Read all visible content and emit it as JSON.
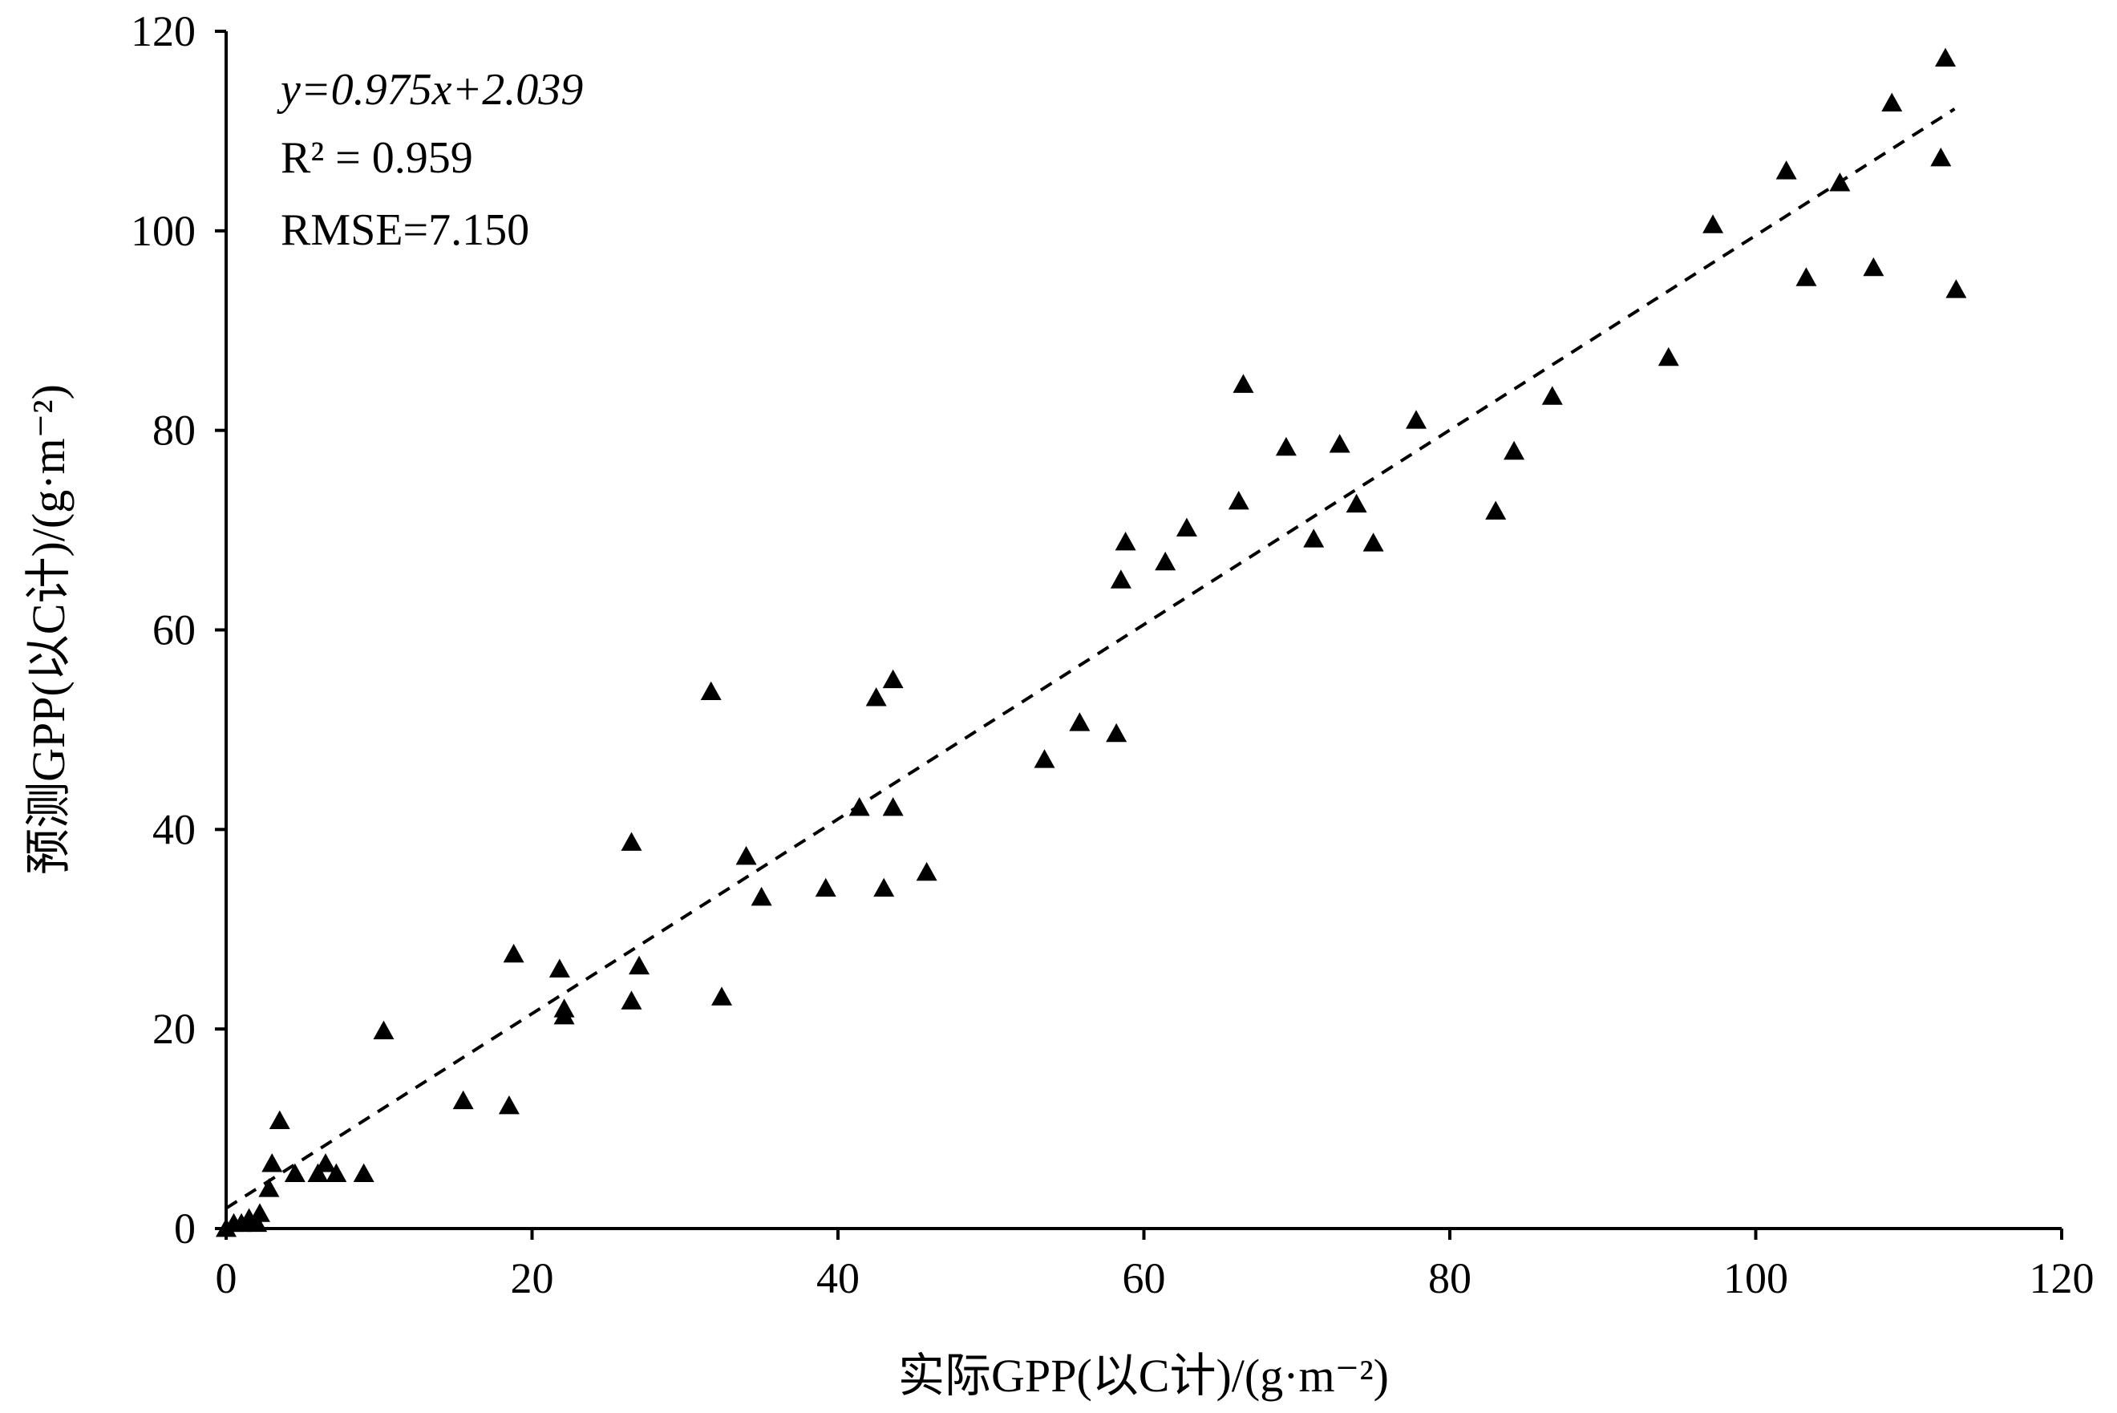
{
  "chart_data": {
    "type": "scatter",
    "title": "",
    "xlabel": "实际GPP(以C计)/(g·m⁻²)",
    "ylabel": "预测GPP(以C计)/(g·m⁻²)",
    "xlim": [
      0,
      120
    ],
    "ylim": [
      0,
      120
    ],
    "xticks": [
      "0",
      "20",
      "40",
      "60",
      "80",
      "100",
      "120"
    ],
    "yticks": [
      "0",
      "20",
      "40",
      "60",
      "80",
      "100",
      "120"
    ],
    "grid": false,
    "marker": "triangle",
    "marker_color": "#000000",
    "annotations": {
      "equation": "y=0.975x+2.039",
      "r2": "R² = 0.959",
      "rmse": "RMSE=7.150"
    },
    "fit_line": {
      "slope": 0.975,
      "intercept": 2.039,
      "style": "dashed",
      "x_range": [
        0,
        113
      ]
    },
    "points": [
      [
        0,
        0
      ],
      [
        0.5,
        0.5
      ],
      [
        1,
        0.5
      ],
      [
        1.5,
        1
      ],
      [
        2,
        0.5
      ],
      [
        2.2,
        1.5
      ],
      [
        2.8,
        4
      ],
      [
        3,
        6.5
      ],
      [
        3.5,
        10.8
      ],
      [
        4.5,
        5.5
      ],
      [
        6,
        5.5
      ],
      [
        6.5,
        6.5
      ],
      [
        7.2,
        5.5
      ],
      [
        9,
        5.5
      ],
      [
        10.3,
        19.8
      ],
      [
        15.5,
        12.8
      ],
      [
        18.5,
        12.3
      ],
      [
        18.8,
        27.5
      ],
      [
        21.8,
        26
      ],
      [
        22.1,
        22
      ],
      [
        22.1,
        21.3
      ],
      [
        26.5,
        22.8
      ],
      [
        26.5,
        38.7
      ],
      [
        27,
        26.3
      ],
      [
        31.7,
        53.8
      ],
      [
        32.4,
        23.2
      ],
      [
        34,
        37.3
      ],
      [
        35,
        33.2
      ],
      [
        39.2,
        34.1
      ],
      [
        41.4,
        42.2
      ],
      [
        42.5,
        53.2
      ],
      [
        43,
        34.1
      ],
      [
        43.6,
        55
      ],
      [
        43.6,
        42.2
      ],
      [
        45.8,
        35.7
      ],
      [
        53.5,
        47
      ],
      [
        55.8,
        50.7
      ],
      [
        58.2,
        49.6
      ],
      [
        58.5,
        65
      ],
      [
        58.8,
        68.8
      ],
      [
        61.4,
        66.8
      ],
      [
        62.8,
        70.2
      ],
      [
        66.2,
        72.9
      ],
      [
        66.5,
        84.6
      ],
      [
        69.3,
        78.3
      ],
      [
        71.1,
        69.1
      ],
      [
        72.8,
        78.6
      ],
      [
        73.9,
        72.6
      ],
      [
        75,
        68.7
      ],
      [
        77.8,
        81
      ],
      [
        83,
        71.9
      ],
      [
        84.2,
        77.9
      ],
      [
        86.7,
        83.4
      ],
      [
        94.3,
        87.3
      ],
      [
        97.2,
        100.6
      ],
      [
        102,
        106
      ],
      [
        103.3,
        95.3
      ],
      [
        105.5,
        104.8
      ],
      [
        107.7,
        96.3
      ],
      [
        108.9,
        112.8
      ],
      [
        112.1,
        107.3
      ],
      [
        112.4,
        117.3
      ],
      [
        113.1,
        94.1
      ]
    ]
  }
}
